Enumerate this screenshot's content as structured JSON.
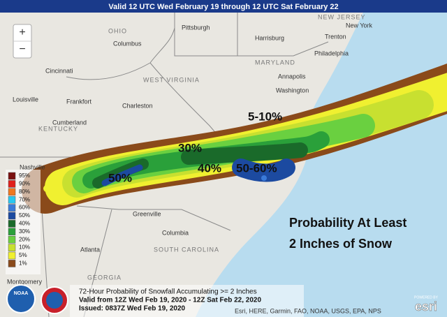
{
  "header": "Valid 12 UTC Wed February 19 through 12 UTC Sat February 22",
  "zoom": {
    "in": "+",
    "out": "−"
  },
  "places": [
    "Pittsburgh",
    "Harrisburg",
    "New York",
    "Trenton",
    "Philadelphia",
    "Columbus",
    "Cincinnati",
    "Louisville",
    "Frankfort",
    "Charleston",
    "Washington",
    "Annapolis",
    "Nashville",
    "Greenville",
    "Columbia",
    "Atlanta",
    "Montgomery",
    "Cumberland"
  ],
  "states": [
    "OHIO",
    "WEST VIRGINIA",
    "KENTUCKY",
    "MARYLAND",
    "SOUTH CAROLINA",
    "GEORGIA",
    "NEW JERSEY"
  ],
  "contour_labels": [
    "5-10%",
    "30%",
    "40%",
    "50-60%",
    "50%"
  ],
  "overlay_title": [
    "Probability At Least",
    "2 Inches of Snow"
  ],
  "legend": [
    {
      "label": "95%",
      "color": "#7a1010"
    },
    {
      "label": "90%",
      "color": "#e0201c"
    },
    {
      "label": "80%",
      "color": "#f07820"
    },
    {
      "label": "70%",
      "color": "#28c8f0"
    },
    {
      "label": "60%",
      "color": "#3a7ad8"
    },
    {
      "label": "50%",
      "color": "#1c4aa0"
    },
    {
      "label": "40%",
      "color": "#1a6a2a"
    },
    {
      "label": "30%",
      "color": "#2aa03a"
    },
    {
      "label": "20%",
      "color": "#6ad040"
    },
    {
      "label": "10%",
      "color": "#c8e030"
    },
    {
      "label": "5%",
      "color": "#f0f030"
    },
    {
      "label": "1%",
      "color": "#8a4a1a"
    }
  ],
  "caption": [
    "72-Hour Probability of Snowfall Accumulating >= 2 Inches",
    "Valid from 12Z Wed Feb 19, 2020 - 12Z Sat Feb 22, 2020",
    "Issued: 0837Z Wed Feb 19, 2020"
  ],
  "attribution": "Esri, HERE, Garmin, FAO, NOAA, USGS, EPA, NPS",
  "esri": {
    "powered": "POWERED BY",
    "logo": "esri"
  },
  "noaa": "NOAA"
}
